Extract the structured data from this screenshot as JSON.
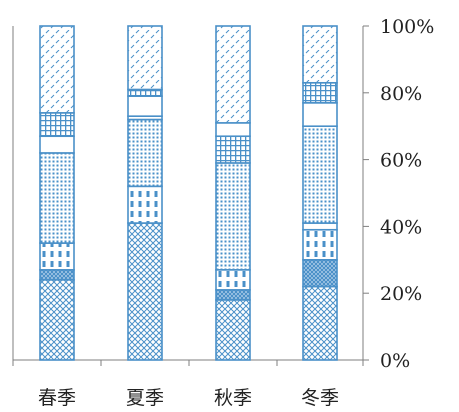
{
  "chart_data": {
    "type": "bar",
    "stacked": true,
    "percent": true,
    "categories": [
      "春季",
      "夏季",
      "秋季",
      "冬季"
    ],
    "series": [
      {
        "pattern": "crosshatch",
        "values": [
          24,
          41,
          18,
          22
        ]
      },
      {
        "pattern": "diagonal-cross",
        "values": [
          3,
          0,
          3,
          8
        ]
      },
      {
        "pattern": "vertical-dash",
        "values": [
          8,
          11,
          6,
          9
        ]
      },
      {
        "pattern": "white",
        "values": [
          0,
          0,
          0,
          2
        ]
      },
      {
        "pattern": "dots",
        "values": [
          27,
          20,
          32,
          29
        ]
      },
      {
        "pattern": "white",
        "values": [
          5,
          1,
          0,
          7
        ]
      },
      {
        "pattern": "grid",
        "values": [
          7,
          0,
          8,
          6
        ]
      },
      {
        "pattern": "white",
        "values": [
          0,
          6,
          4,
          0
        ]
      },
      {
        "pattern": "grid",
        "values": [
          0,
          2,
          0,
          0
        ]
      },
      {
        "pattern": "diagonal-dash",
        "values": [
          26,
          19,
          29,
          17
        ]
      }
    ],
    "y_ticks": [
      "0%",
      "20%",
      "40%",
      "60%",
      "80%",
      "100%"
    ],
    "ylim": [
      0,
      100
    ],
    "y_axis_side": "right",
    "grid": false,
    "legend": "none",
    "colors": {
      "outline": "#4a90c8",
      "axis": "#7f7f7f",
      "text": "#222222"
    }
  }
}
